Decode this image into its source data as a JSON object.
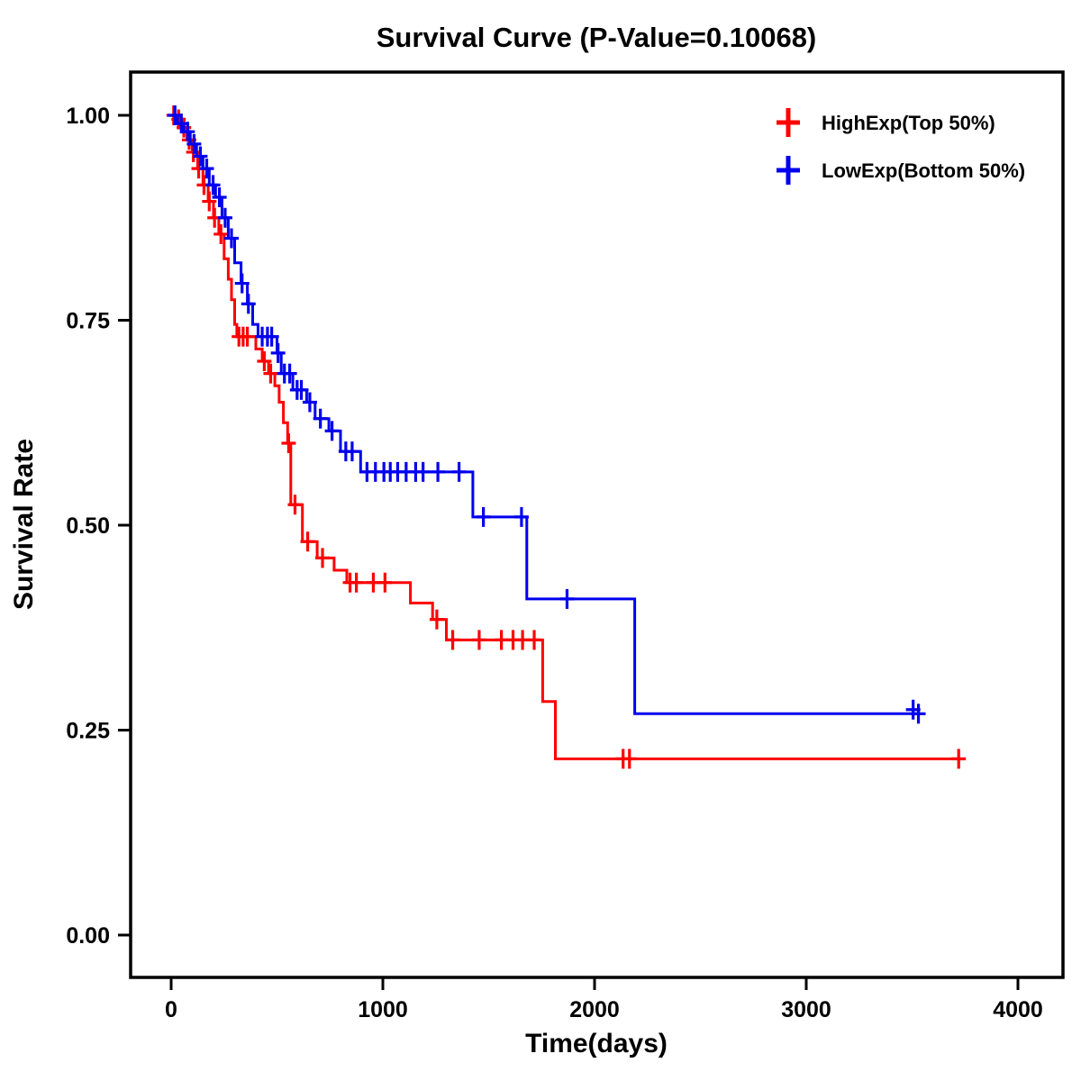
{
  "chart_data": {
    "type": "line",
    "subtype": "kaplan-meier-step",
    "title": "Survival Curve (P-Value=0.10068)",
    "xlabel": "Time(days)",
    "ylabel": "Survival Rate",
    "xlim": [
      -200,
      4220
    ],
    "ylim": [
      -0.052,
      1.053
    ],
    "xticks": [
      0,
      1000,
      2000,
      3000,
      4000
    ],
    "xtick_labels": [
      "0",
      "1000",
      "2000",
      "3000",
      "4000"
    ],
    "yticks": [
      0,
      0.25,
      0.5,
      0.75,
      1
    ],
    "ytick_labels": [
      "0.00",
      "0.25",
      "0.50",
      "0.75",
      "1.00"
    ],
    "grid": false,
    "legend_position": "top-right-inside",
    "series": [
      {
        "name": "HighExp(Top 50%)",
        "color": "#FF0000",
        "steps": [
          [
            0,
            1.0
          ],
          [
            25,
            0.995
          ],
          [
            50,
            0.985
          ],
          [
            75,
            0.97
          ],
          [
            100,
            0.955
          ],
          [
            125,
            0.935
          ],
          [
            150,
            0.915
          ],
          [
            175,
            0.895
          ],
          [
            200,
            0.875
          ],
          [
            225,
            0.855
          ],
          [
            250,
            0.825
          ],
          [
            270,
            0.8
          ],
          [
            285,
            0.775
          ],
          [
            300,
            0.745
          ],
          [
            310,
            0.73
          ],
          [
            400,
            0.715
          ],
          [
            430,
            0.7
          ],
          [
            460,
            0.685
          ],
          [
            490,
            0.67
          ],
          [
            510,
            0.65
          ],
          [
            530,
            0.625
          ],
          [
            550,
            0.6
          ],
          [
            565,
            0.525
          ],
          [
            620,
            0.48
          ],
          [
            690,
            0.46
          ],
          [
            770,
            0.445
          ],
          [
            830,
            0.43
          ],
          [
            1130,
            0.405
          ],
          [
            1235,
            0.385
          ],
          [
            1300,
            0.36
          ],
          [
            1755,
            0.285
          ],
          [
            1815,
            0.215
          ],
          [
            3720,
            0.215
          ]
        ],
        "censors": [
          [
            12,
            1.0
          ],
          [
            35,
            0.995
          ],
          [
            60,
            0.985
          ],
          [
            85,
            0.97
          ],
          [
            105,
            0.955
          ],
          [
            130,
            0.935
          ],
          [
            155,
            0.915
          ],
          [
            180,
            0.895
          ],
          [
            205,
            0.875
          ],
          [
            235,
            0.855
          ],
          [
            320,
            0.73
          ],
          [
            340,
            0.73
          ],
          [
            360,
            0.73
          ],
          [
            440,
            0.7
          ],
          [
            470,
            0.685
          ],
          [
            555,
            0.6
          ],
          [
            585,
            0.525
          ],
          [
            645,
            0.48
          ],
          [
            715,
            0.46
          ],
          [
            845,
            0.43
          ],
          [
            875,
            0.43
          ],
          [
            955,
            0.43
          ],
          [
            1010,
            0.43
          ],
          [
            1255,
            0.385
          ],
          [
            1330,
            0.36
          ],
          [
            1455,
            0.36
          ],
          [
            1560,
            0.36
          ],
          [
            1615,
            0.36
          ],
          [
            1660,
            0.36
          ],
          [
            1715,
            0.36
          ],
          [
            2135,
            0.215
          ],
          [
            2165,
            0.215
          ],
          [
            3720,
            0.215
          ]
        ]
      },
      {
        "name": "LowExp(Bottom 50%)",
        "color": "#0000EE",
        "steps": [
          [
            0,
            1.0
          ],
          [
            30,
            0.99
          ],
          [
            60,
            0.98
          ],
          [
            90,
            0.965
          ],
          [
            120,
            0.95
          ],
          [
            150,
            0.935
          ],
          [
            180,
            0.915
          ],
          [
            210,
            0.9
          ],
          [
            240,
            0.875
          ],
          [
            270,
            0.85
          ],
          [
            300,
            0.82
          ],
          [
            330,
            0.795
          ],
          [
            360,
            0.77
          ],
          [
            385,
            0.745
          ],
          [
            410,
            0.73
          ],
          [
            500,
            0.71
          ],
          [
            520,
            0.685
          ],
          [
            575,
            0.665
          ],
          [
            640,
            0.65
          ],
          [
            680,
            0.63
          ],
          [
            745,
            0.615
          ],
          [
            800,
            0.59
          ],
          [
            895,
            0.565
          ],
          [
            1425,
            0.51
          ],
          [
            1680,
            0.41
          ],
          [
            2190,
            0.27
          ],
          [
            3530,
            0.27
          ]
        ],
        "censors": [
          [
            18,
            1.0
          ],
          [
            48,
            0.99
          ],
          [
            78,
            0.98
          ],
          [
            108,
            0.965
          ],
          [
            138,
            0.95
          ],
          [
            168,
            0.935
          ],
          [
            198,
            0.915
          ],
          [
            228,
            0.9
          ],
          [
            255,
            0.875
          ],
          [
            285,
            0.85
          ],
          [
            335,
            0.795
          ],
          [
            365,
            0.77
          ],
          [
            430,
            0.73
          ],
          [
            455,
            0.73
          ],
          [
            475,
            0.73
          ],
          [
            505,
            0.71
          ],
          [
            535,
            0.685
          ],
          [
            560,
            0.685
          ],
          [
            595,
            0.665
          ],
          [
            615,
            0.665
          ],
          [
            655,
            0.65
          ],
          [
            705,
            0.63
          ],
          [
            760,
            0.615
          ],
          [
            825,
            0.59
          ],
          [
            855,
            0.59
          ],
          [
            925,
            0.565
          ],
          [
            965,
            0.565
          ],
          [
            1005,
            0.565
          ],
          [
            1035,
            0.565
          ],
          [
            1070,
            0.565
          ],
          [
            1110,
            0.565
          ],
          [
            1155,
            0.565
          ],
          [
            1190,
            0.565
          ],
          [
            1260,
            0.565
          ],
          [
            1360,
            0.565
          ],
          [
            1475,
            0.51
          ],
          [
            1655,
            0.51
          ],
          [
            1870,
            0.41
          ],
          [
            3505,
            0.275
          ],
          [
            3530,
            0.27
          ]
        ]
      }
    ]
  }
}
